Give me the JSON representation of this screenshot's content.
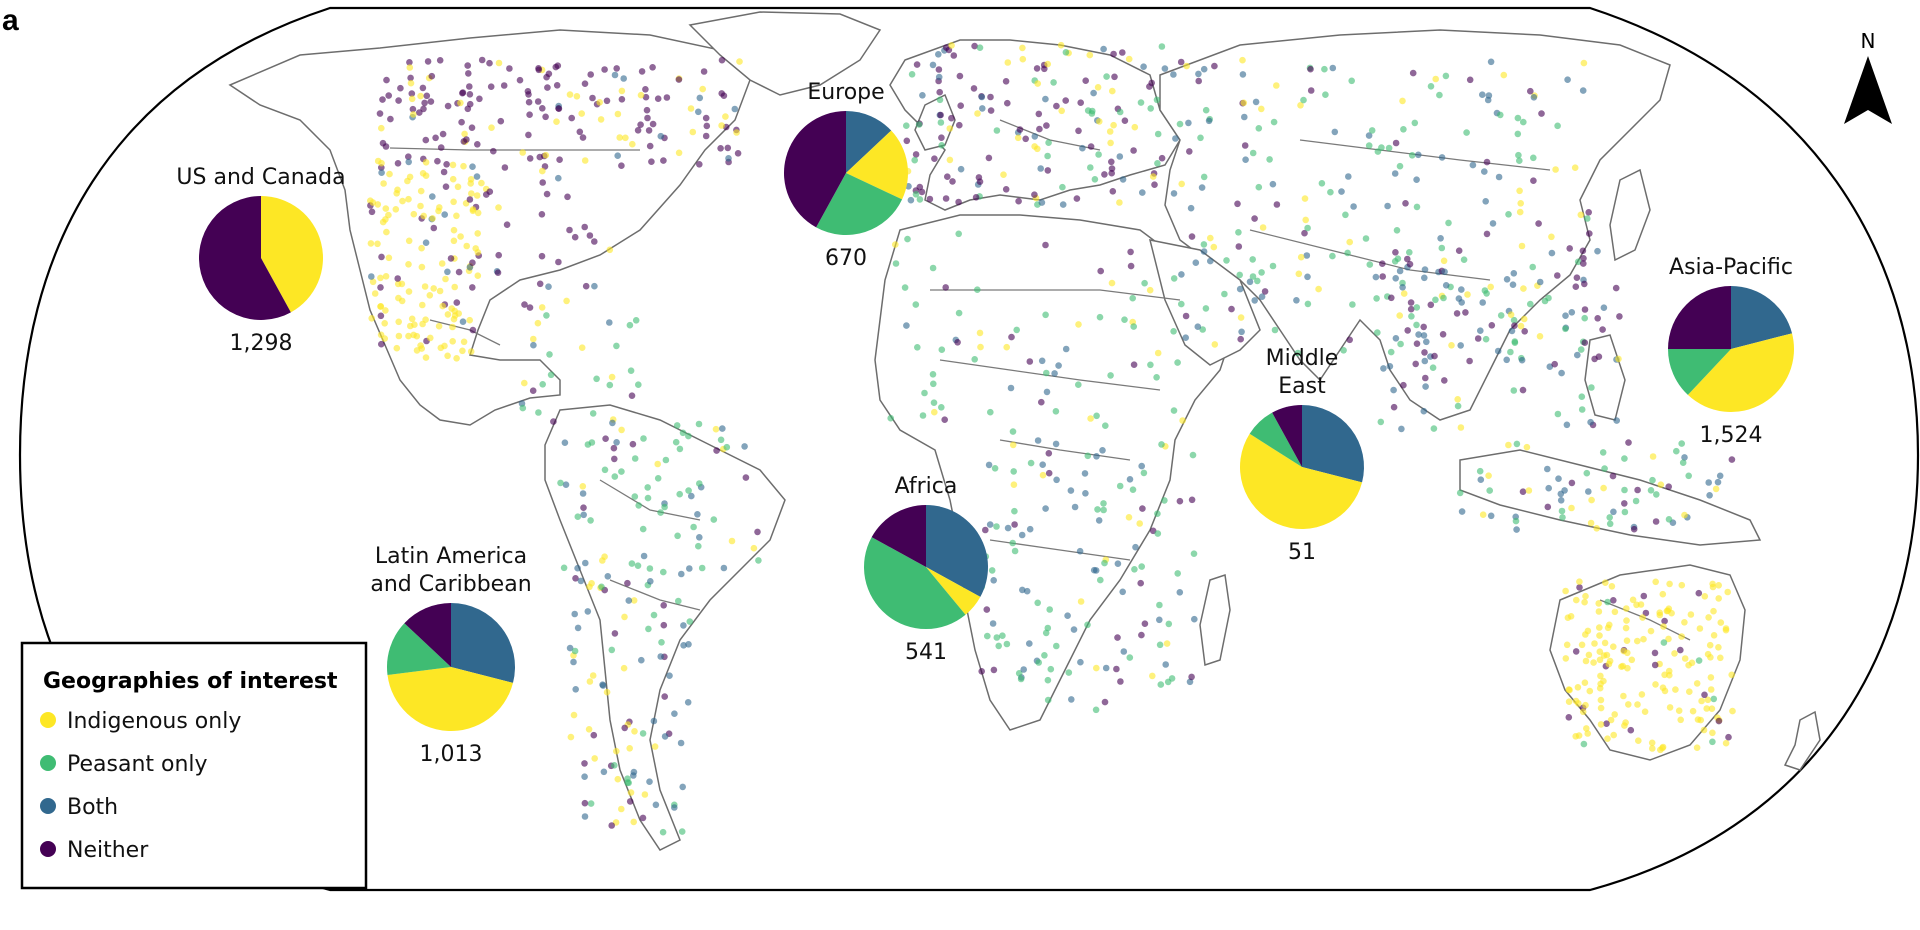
{
  "panel_label": "a",
  "north_arrow": "N",
  "legend": {
    "title": "Geographies of interest",
    "items": [
      {
        "label": "Indigenous only",
        "color": "#fde725"
      },
      {
        "label": "Peasant only",
        "color": "#3fbc73"
      },
      {
        "label": "Both",
        "color": "#31688e"
      },
      {
        "label": "Neither",
        "color": "#440154"
      }
    ]
  },
  "chart_data": {
    "type": "pie",
    "categories": [
      "Indigenous only",
      "Peasant only",
      "Both",
      "Neither"
    ],
    "regions": [
      {
        "id": "us-canada",
        "lines": [
          "US and Canada"
        ],
        "total": "1,298",
        "shares": [
          0.42,
          0.0,
          0.0,
          0.58
        ]
      },
      {
        "id": "europe",
        "lines": [
          "Europe"
        ],
        "total": "670",
        "shares": [
          0.19,
          0.26,
          0.13,
          0.42
        ]
      },
      {
        "id": "latin-america",
        "lines": [
          "Latin America",
          "and Caribbean"
        ],
        "total": "1,013",
        "shares": [
          0.44,
          0.14,
          0.29,
          0.13
        ]
      },
      {
        "id": "africa",
        "lines": [
          "Africa"
        ],
        "total": "541",
        "shares": [
          0.06,
          0.44,
          0.33,
          0.17
        ]
      },
      {
        "id": "middle-east",
        "lines": [
          "Middle",
          "East"
        ],
        "total": "51",
        "shares": [
          0.55,
          0.08,
          0.29,
          0.08
        ]
      },
      {
        "id": "asia-pacific",
        "lines": [
          "Asia-Pacific"
        ],
        "total": "1,524",
        "shares": [
          0.41,
          0.13,
          0.21,
          0.25
        ]
      }
    ]
  }
}
